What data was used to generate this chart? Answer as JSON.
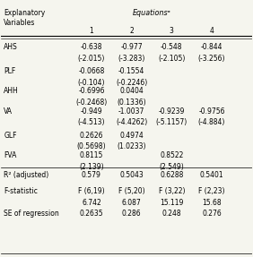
{
  "title_line1": "Explanatory",
  "title_line2": "Variables",
  "equations_header": "Equationsᵃ",
  "col_headers": [
    "1",
    "2",
    "3",
    "4"
  ],
  "rows": [
    {
      "label": "AHS",
      "values": [
        "-0.638\n(-2.015)",
        "-0.977\n(-3.283)",
        "-0.548\n(-2.105)",
        "-0.844\n(-3.256)"
      ]
    },
    {
      "label": "PLF",
      "values": [
        "-0.0668\n(-0.104)",
        "-0.1554\n(-0.2246)",
        "",
        ""
      ]
    },
    {
      "label": "AHH",
      "values": [
        "-0.6996\n(-0.2468)",
        "0.0404\n(0.1336)",
        "",
        ""
      ]
    },
    {
      "label": "VA",
      "values": [
        "-0.949\n(-4.513)",
        "-1.0037\n(-4.4262)",
        "-0.9239\n(-5.1157)",
        "-0.9756\n(-4.884)"
      ]
    },
    {
      "label": "GLF",
      "values": [
        "0.2626\n(0.5698)",
        "0.4974\n(1.0233)",
        "",
        ""
      ]
    },
    {
      "label": "FVA",
      "values": [
        "0.8115\n(2.139)",
        "",
        "0.8522\n(2.549)",
        ""
      ]
    },
    {
      "label": "R² (adjusted)",
      "values": [
        "0.579",
        "0.5043",
        "0.6288",
        "0.5401"
      ]
    },
    {
      "label": "F-statistic",
      "values": [
        "F (6,19)\n6.742",
        "F (5,20)\n6.087",
        "F (3,22)\n15.119",
        "F (2,23)\n15.68"
      ]
    },
    {
      "label": "SE of regression",
      "values": [
        "0.2635",
        "0.286",
        "0.248",
        "0.276"
      ]
    }
  ],
  "bg_color": "#f5f5ee",
  "font_size": 5.5,
  "header_font_size": 5.8
}
